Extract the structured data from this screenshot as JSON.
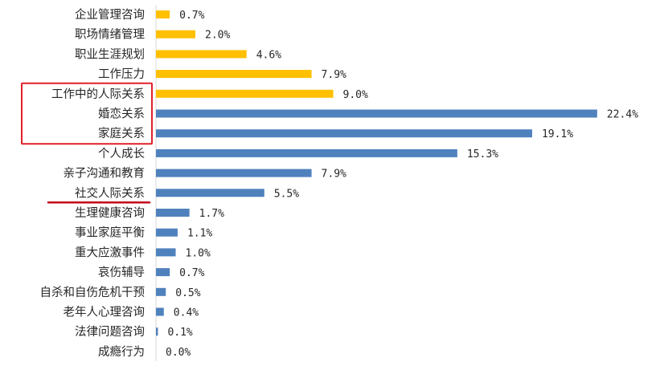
{
  "chart_data": {
    "type": "bar",
    "orientation": "horizontal",
    "categories": [
      "企业管理咨询",
      "职场情绪管理",
      "职业生涯规划",
      "工作压力",
      "工作中的人际关系",
      "婚恋关系",
      "家庭关系",
      "个人成长",
      "亲子沟通和教育",
      "社交人际关系",
      "生理健康咨询",
      "事业家庭平衡",
      "重大应激事件",
      "哀伤辅导",
      "自杀和自伤危机干预",
      "老年人心理咨询",
      "法律问题咨询",
      "成瘾行为"
    ],
    "values": [
      0.7,
      2.0,
      4.6,
      7.9,
      9.0,
      22.4,
      19.1,
      15.3,
      7.9,
      5.5,
      1.7,
      1.1,
      1.0,
      0.7,
      0.5,
      0.4,
      0.1,
      0.0
    ],
    "value_labels": [
      "0.7%",
      "2.0%",
      "4.6%",
      "7.9%",
      "9.0%",
      "22.4%",
      "19.1%",
      "15.3%",
      "7.9%",
      "5.5%",
      "1.7%",
      "1.1%",
      "1.0%",
      "0.7%",
      "0.5%",
      "0.4%",
      "0.1%",
      "0.0%"
    ],
    "bar_groups": [
      "work",
      "work",
      "work",
      "work",
      "work",
      "life",
      "life",
      "life",
      "life",
      "life",
      "life",
      "life",
      "life",
      "life",
      "life",
      "life",
      "life",
      "life"
    ],
    "colors": {
      "work": "#FFC000",
      "life": "#4F81BD"
    },
    "annotations": {
      "highlight_box_categories": [
        "工作中的人际关系",
        "婚恋关系",
        "家庭关系"
      ],
      "highlight_box_color": "#E0202A",
      "underline_category": "社交人际关系",
      "underline_color": "#C0001B"
    },
    "xlim": [
      0,
      24
    ],
    "grid": false,
    "legend": "none",
    "title": "",
    "xlabel": "",
    "ylabel": ""
  }
}
